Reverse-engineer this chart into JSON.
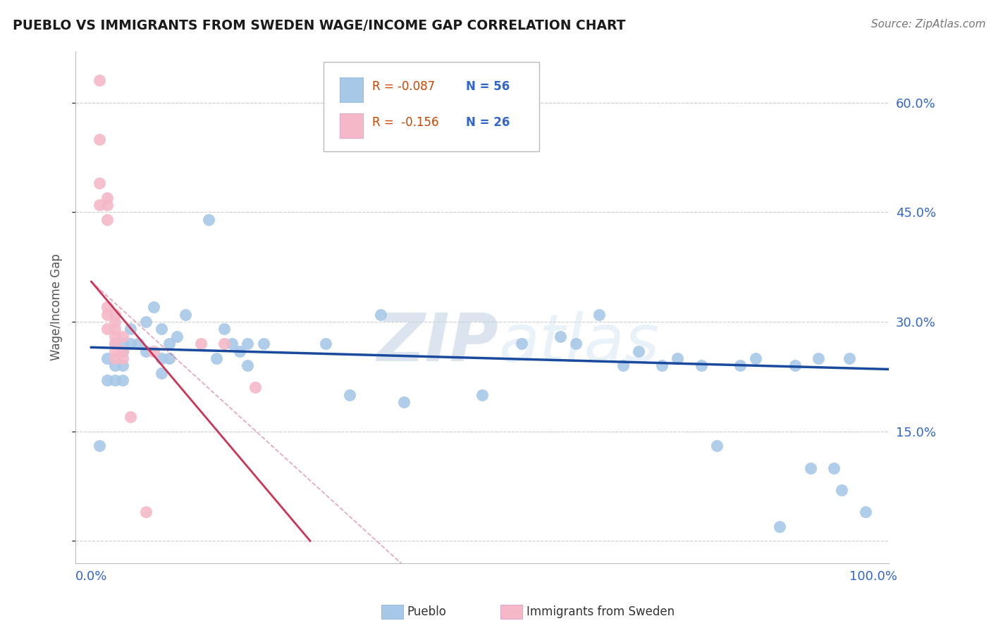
{
  "title": "PUEBLO VS IMMIGRANTS FROM SWEDEN WAGE/INCOME GAP CORRELATION CHART",
  "source": "Source: ZipAtlas.com",
  "ylabel": "Wage/Income Gap",
  "xlim": [
    -0.02,
    1.02
  ],
  "ylim": [
    -0.03,
    0.67
  ],
  "yticks": [
    0.0,
    0.15,
    0.3,
    0.45,
    0.6
  ],
  "xticks": [
    0.0,
    0.25,
    0.5,
    0.75,
    1.0
  ],
  "blue_color": "#a8c8e8",
  "pink_color": "#f5b8c8",
  "blue_line_color": "#1a4a9e",
  "pink_line_color": "#cc3355",
  "blue_x": [
    0.01,
    0.02,
    0.02,
    0.03,
    0.03,
    0.03,
    0.04,
    0.04,
    0.04,
    0.04,
    0.05,
    0.05,
    0.06,
    0.07,
    0.07,
    0.08,
    0.09,
    0.09,
    0.09,
    0.1,
    0.1,
    0.11,
    0.12,
    0.15,
    0.16,
    0.17,
    0.18,
    0.19,
    0.2,
    0.2,
    0.22,
    0.3,
    0.33,
    0.37,
    0.4,
    0.5,
    0.55,
    0.6,
    0.62,
    0.65,
    0.68,
    0.7,
    0.73,
    0.75,
    0.78,
    0.8,
    0.83,
    0.85,
    0.88,
    0.9,
    0.92,
    0.93,
    0.95,
    0.96,
    0.97,
    0.99
  ],
  "blue_y": [
    0.13,
    0.25,
    0.22,
    0.27,
    0.24,
    0.22,
    0.27,
    0.26,
    0.24,
    0.22,
    0.29,
    0.27,
    0.27,
    0.3,
    0.26,
    0.32,
    0.29,
    0.25,
    0.23,
    0.25,
    0.27,
    0.28,
    0.31,
    0.44,
    0.25,
    0.29,
    0.27,
    0.26,
    0.27,
    0.24,
    0.27,
    0.27,
    0.2,
    0.31,
    0.19,
    0.2,
    0.27,
    0.28,
    0.27,
    0.31,
    0.24,
    0.26,
    0.24,
    0.25,
    0.24,
    0.13,
    0.24,
    0.25,
    0.02,
    0.24,
    0.1,
    0.25,
    0.1,
    0.07,
    0.25,
    0.04
  ],
  "pink_x": [
    0.01,
    0.01,
    0.01,
    0.01,
    0.02,
    0.02,
    0.02,
    0.02,
    0.02,
    0.02,
    0.03,
    0.03,
    0.03,
    0.03,
    0.03,
    0.03,
    0.03,
    0.04,
    0.04,
    0.04,
    0.05,
    0.07,
    0.08,
    0.14,
    0.17,
    0.21
  ],
  "pink_y": [
    0.63,
    0.55,
    0.49,
    0.46,
    0.47,
    0.46,
    0.44,
    0.32,
    0.31,
    0.29,
    0.31,
    0.3,
    0.29,
    0.28,
    0.27,
    0.26,
    0.25,
    0.28,
    0.26,
    0.25,
    0.17,
    0.04,
    0.26,
    0.27,
    0.27,
    0.21
  ],
  "watermark_zip": "ZIP",
  "watermark_atlas": "atlas",
  "blue_trend_x": [
    0.0,
    1.02
  ],
  "blue_trend_y": [
    0.265,
    0.235
  ],
  "pink_trend_x": [
    0.0,
    0.28
  ],
  "pink_trend_y": [
    0.355,
    0.0
  ]
}
